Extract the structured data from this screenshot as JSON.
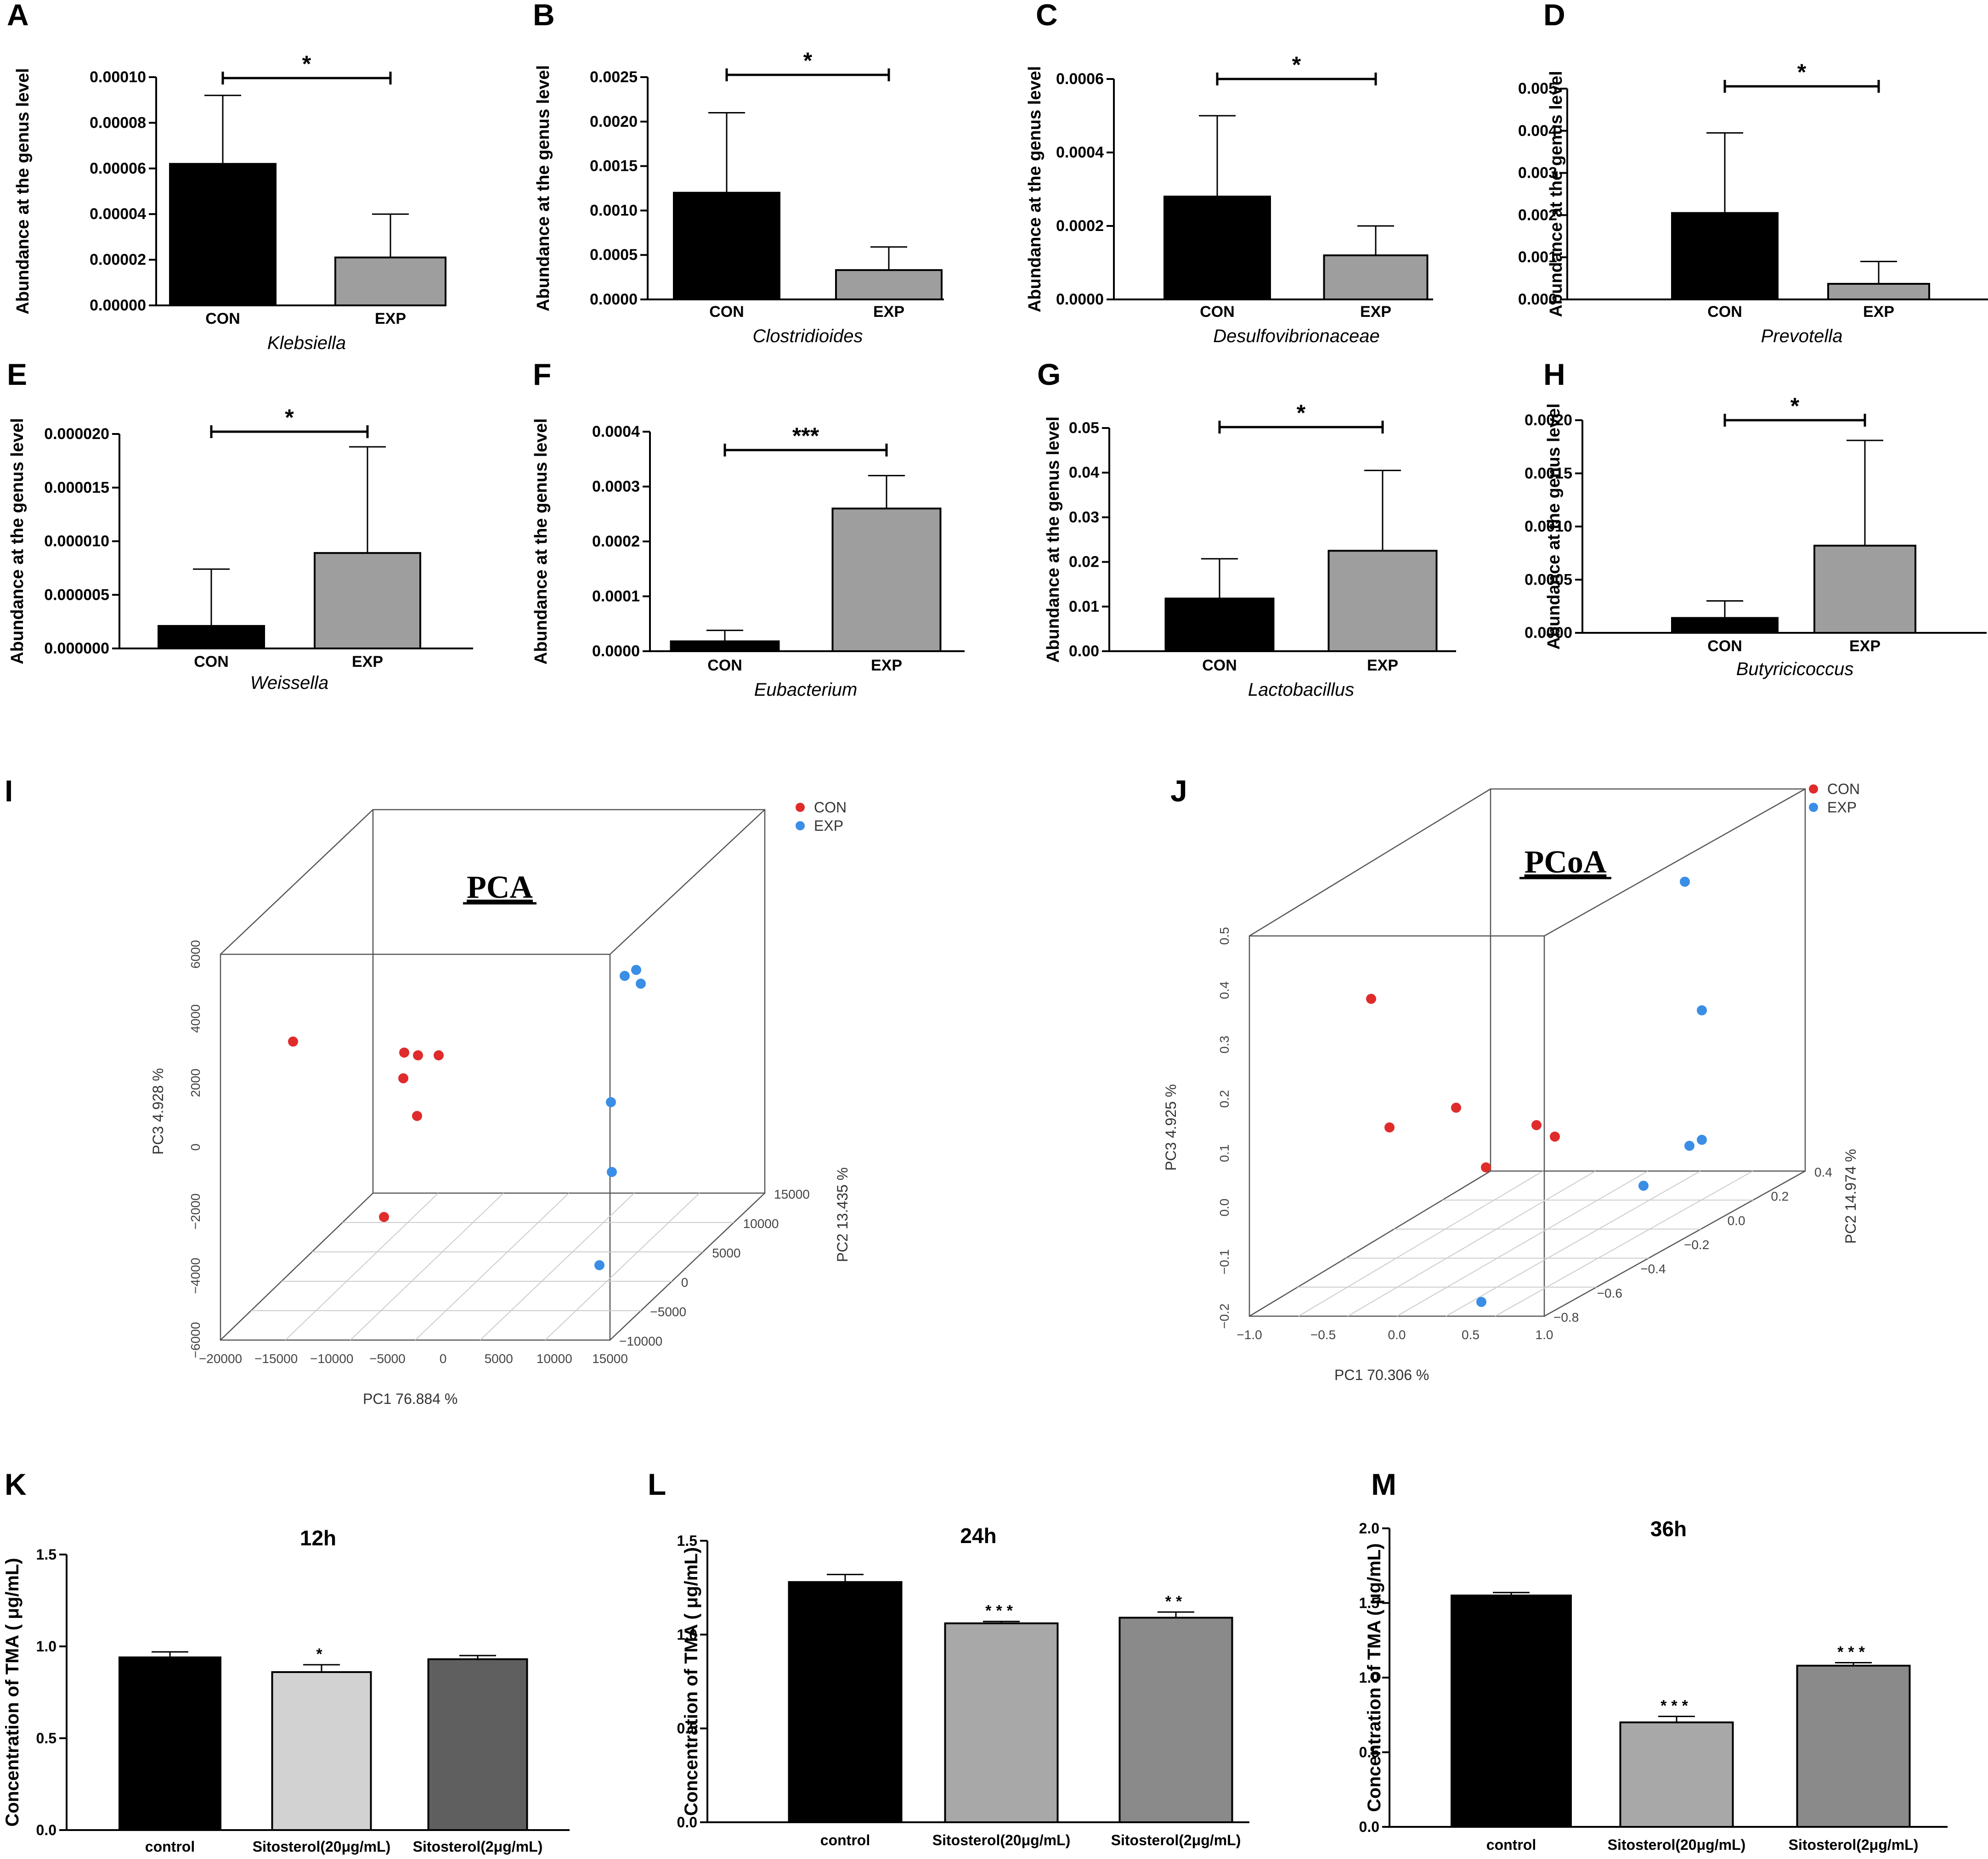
{
  "colors": {
    "con": "#000000",
    "exp": "#9e9e9e",
    "con_point": "#e02b2b",
    "exp_point": "#3a8ee6",
    "tma_control": "#000000",
    "tma_20": "#d2d2d2",
    "tma_2": "#5f5f5f",
    "tma_20_b": "#a8a8a8",
    "tma_2_b": "#8a8a8a"
  },
  "chart_data": [
    {
      "panel": "A",
      "type": "bar",
      "title": "Klebsiella",
      "ylabel": "Abundance at the genus level",
      "categories": [
        "CON",
        "EXP"
      ],
      "values": [
        6.2e-05,
        2.1e-05
      ],
      "errors": [
        3e-05,
        1.9e-05
      ],
      "ylim": [
        0,
        0.0001
      ],
      "yticks": [
        0,
        2e-05,
        4e-05,
        6e-05,
        8e-05,
        0.0001
      ],
      "ytick_labels": [
        "0.00000",
        "0.00002",
        "0.00004",
        "0.00006",
        "0.00008",
        "0.00010"
      ],
      "significance": "*"
    },
    {
      "panel": "B",
      "type": "bar",
      "title": "Clostridioides",
      "ylabel": "Abundance at the genus level",
      "categories": [
        "CON",
        "EXP"
      ],
      "values": [
        0.0012,
        0.00033
      ],
      "errors": [
        0.0009,
        0.00026
      ],
      "ylim": [
        0,
        0.0025
      ],
      "yticks": [
        0,
        0.0005,
        0.001,
        0.0015,
        0.002,
        0.0025
      ],
      "ytick_labels": [
        "0.0000",
        "0.0005",
        "0.0010",
        "0.0015",
        "0.0020",
        "0.0025"
      ],
      "significance": "*"
    },
    {
      "panel": "C",
      "type": "bar",
      "title": "Desulfovibrionaceae",
      "ylabel": "Abundance at the genus level",
      "categories": [
        "CON",
        "EXP"
      ],
      "values": [
        0.00028,
        0.00012
      ],
      "errors": [
        0.00022,
        8e-05
      ],
      "ylim": [
        0,
        0.0006
      ],
      "yticks": [
        0,
        0.0002,
        0.0004,
        0.0006
      ],
      "ytick_labels": [
        "0.0000",
        "0.0002",
        "0.0004",
        "0.0006"
      ],
      "significance": "*"
    },
    {
      "panel": "D",
      "type": "bar",
      "title": "Prevotella",
      "ylabel": "Abundance at the genus level",
      "categories": [
        "CON",
        "EXP"
      ],
      "values": [
        0.00205,
        0.00037
      ],
      "errors": [
        0.0019,
        0.00053
      ],
      "ylim": [
        0,
        0.005
      ],
      "yticks": [
        0,
        0.001,
        0.002,
        0.003,
        0.004,
        0.005
      ],
      "ytick_labels": [
        "0.000",
        "0.001",
        "0.002",
        "0.003",
        "0.004",
        "0.005"
      ],
      "significance": "*"
    },
    {
      "panel": "E",
      "type": "bar",
      "title": "Weissella",
      "ylabel": "Abundance at the genus level",
      "categories": [
        "CON",
        "EXP"
      ],
      "values": [
        2.1e-06,
        8.9e-06
      ],
      "errors": [
        5.3e-06,
        9.9e-06
      ],
      "ylim": [
        0,
        2e-05
      ],
      "yticks": [
        0,
        5e-06,
        1e-05,
        1.5e-05,
        2e-05
      ],
      "ytick_labels": [
        "0.000000",
        "0.000005",
        "0.000010",
        "0.000015",
        "0.000020"
      ],
      "significance": "*"
    },
    {
      "panel": "F",
      "type": "bar",
      "title": "Eubacterium",
      "ylabel": "Abundance at the genus level",
      "categories": [
        "CON",
        "EXP"
      ],
      "values": [
        1.8e-05,
        0.00026
      ],
      "errors": [
        2e-05,
        6e-05
      ],
      "ylim": [
        0,
        0.0004
      ],
      "yticks": [
        0,
        0.0001,
        0.0002,
        0.0003,
        0.0004
      ],
      "ytick_labels": [
        "0.0000",
        "0.0001",
        "0.0002",
        "0.0003",
        "0.0004"
      ],
      "significance": "***"
    },
    {
      "panel": "G",
      "type": "bar",
      "title": "Lactobacillus",
      "ylabel": "Abundance at the genus level",
      "categories": [
        "CON",
        "EXP"
      ],
      "values": [
        0.0118,
        0.0225
      ],
      "errors": [
        0.0089,
        0.018
      ],
      "ylim": [
        0,
        0.05
      ],
      "yticks": [
        0,
        0.01,
        0.02,
        0.03,
        0.04,
        0.05
      ],
      "ytick_labels": [
        "0.00",
        "0.01",
        "0.02",
        "0.03",
        "0.04",
        "0.05"
      ],
      "significance": "*"
    },
    {
      "panel": "H",
      "type": "bar",
      "title": "Butyricicoccus",
      "ylabel": "Abundance at the genus level",
      "categories": [
        "CON",
        "EXP"
      ],
      "values": [
        0.00014,
        0.00082
      ],
      "errors": [
        0.00016,
        0.00099
      ],
      "ylim": [
        0,
        0.002
      ],
      "yticks": [
        0,
        0.0005,
        0.001,
        0.0015,
        0.002
      ],
      "ytick_labels": [
        "0.0000",
        "0.0005",
        "0.0010",
        "0.0015",
        "0.0020"
      ],
      "significance": "*"
    },
    {
      "panel": "I",
      "type": "scatter3d",
      "title": "PCA",
      "xlabel": "PC1  76.884 %",
      "ylabel": "PC2  13.435 %",
      "zlabel": "PC3  4.928 %",
      "x_ticks": [
        "−20000",
        "−15000",
        "−10000",
        "−5000",
        "0",
        "5000",
        "10000",
        "15000"
      ],
      "y_ticks": [
        "−10000",
        "−5000",
        "0",
        "5000",
        "10000",
        "15000"
      ],
      "z_ticks": [
        "−6000",
        "−4000",
        "−2000",
        "0",
        "2000",
        "4000",
        "6000"
      ],
      "legend": [
        "CON",
        "EXP"
      ]
    },
    {
      "panel": "J",
      "type": "scatter3d",
      "title": "PCoA",
      "xlabel": "PC1  70.306 %",
      "ylabel": "PC2  14.974 %",
      "zlabel": "PC3  4.925 %",
      "x_ticks": [
        "−1.0",
        "−0.5",
        "0.0",
        "0.5",
        "1.0"
      ],
      "y_ticks": [
        "−0.8",
        "−0.6",
        "−0.4",
        "−0.2",
        "0.0",
        "0.2",
        "0.4"
      ],
      "z_ticks": [
        "−0.2",
        "−0.1",
        "0.0",
        "0.1",
        "0.2",
        "0.3",
        "0.4",
        "0.5"
      ],
      "legend": [
        "CON",
        "EXP"
      ]
    },
    {
      "panel": "K",
      "type": "bar",
      "title": "12h",
      "ylabel": "Concentration of TMA ( μg/mL)",
      "categories": [
        "control",
        "Sitosterol(20μg/mL)",
        "Sitosterol(2μg/mL)"
      ],
      "values": [
        0.94,
        0.86,
        0.93
      ],
      "errors": [
        0.03,
        0.04,
        0.02
      ],
      "ylim": [
        0,
        1.5
      ],
      "yticks": [
        0,
        0.5,
        1.0,
        1.5
      ],
      "ytick_labels": [
        "0.0",
        "0.5",
        "1.0",
        "1.5"
      ],
      "significance_labels": [
        "",
        "*",
        ""
      ]
    },
    {
      "panel": "L",
      "type": "bar",
      "title": "24h",
      "ylabel": "Concentration of TMA ( μg/mL)",
      "categories": [
        "control",
        "Sitosterol(20μg/mL)",
        "Sitosterol(2μg/mL)"
      ],
      "values": [
        1.28,
        1.06,
        1.09
      ],
      "errors": [
        0.04,
        0.01,
        0.03
      ],
      "ylim": [
        0,
        1.5
      ],
      "yticks": [
        0,
        0.5,
        1.0,
        1.5
      ],
      "ytick_labels": [
        "0.0",
        "0.5",
        "1.0",
        "1.5"
      ],
      "significance_labels": [
        "",
        "***",
        "**"
      ]
    },
    {
      "panel": "M",
      "type": "bar",
      "title": "36h",
      "ylabel": "Concentration of TMA ( μg/mL)",
      "categories": [
        "control",
        "Sitosterol(20μg/mL)",
        "Sitosterol(2μg/mL)"
      ],
      "values": [
        1.55,
        0.7,
        1.08
      ],
      "errors": [
        0.02,
        0.04,
        0.02
      ],
      "ylim": [
        0,
        2.0
      ],
      "yticks": [
        0,
        0.5,
        1.0,
        1.5,
        2.0
      ],
      "ytick_labels": [
        "0.0",
        "0.5",
        "1.0",
        "1.5",
        "2.0"
      ],
      "significance_labels": [
        "",
        "***",
        "***"
      ]
    }
  ]
}
